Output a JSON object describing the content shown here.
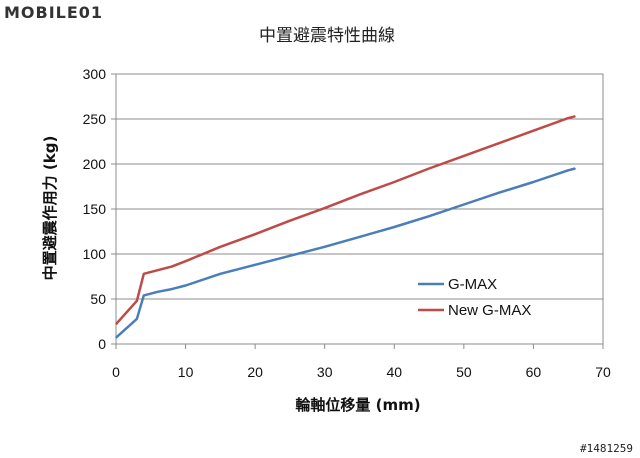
{
  "logo": {
    "text": "MOBILE01"
  },
  "watermark": "#1481259",
  "chart_data": {
    "type": "line",
    "title": "中置避震特性曲線",
    "xlabel": "輪軸位移量 (mm)",
    "ylabel": "中置避震作用力 (kg)",
    "xlim": [
      0,
      70
    ],
    "ylim": [
      0,
      300
    ],
    "x_ticks": [
      "0",
      "10",
      "20",
      "30",
      "40",
      "50",
      "60",
      "70"
    ],
    "y_ticks": [
      "0",
      "50",
      "100",
      "150",
      "200",
      "250",
      "300"
    ],
    "grid": "horizontal",
    "legend_position": "center-right",
    "series": [
      {
        "name": "G-MAX",
        "color": "#4a7ebb",
        "x": [
          0,
          3,
          4,
          6,
          8,
          10,
          15,
          20,
          25,
          30,
          35,
          40,
          45,
          50,
          55,
          60,
          65,
          66
        ],
        "y": [
          7,
          28,
          54,
          58,
          61,
          65,
          78,
          88,
          98,
          108,
          119,
          130,
          142,
          155,
          168,
          180,
          193,
          195
        ]
      },
      {
        "name": "New G-MAX",
        "color": "#be4b48",
        "x": [
          0,
          3,
          4,
          6,
          8,
          10,
          15,
          20,
          25,
          30,
          35,
          40,
          45,
          50,
          55,
          60,
          65,
          66
        ],
        "y": [
          22,
          48,
          78,
          82,
          86,
          92,
          108,
          122,
          137,
          151,
          166,
          180,
          195,
          209,
          223,
          237,
          251,
          253
        ]
      }
    ]
  }
}
